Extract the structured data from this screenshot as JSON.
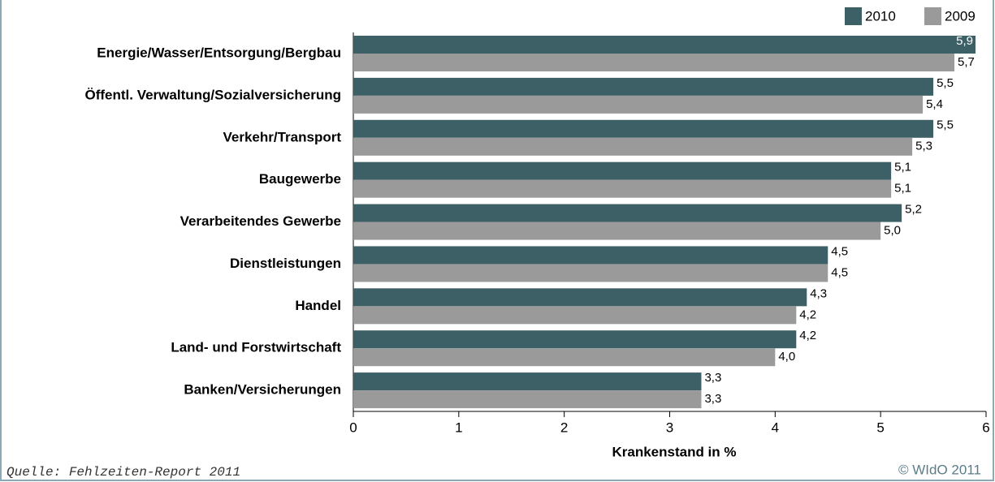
{
  "chart_data": {
    "type": "hbar",
    "categories": [
      "Energie/Wasser/Entsorgung/Bergbau",
      "Öffentl. Verwaltung/Sozialversicherung",
      "Verkehr/Transport",
      "Baugewerbe",
      "Verarbeitendes Gewerbe",
      "Dienstleistungen",
      "Handel",
      "Land- und Forstwirtschaft",
      "Banken/Versicherungen"
    ],
    "series": [
      {
        "name": "2010",
        "color": "#3d5f66",
        "values": [
          5.9,
          5.5,
          5.5,
          5.1,
          5.2,
          4.5,
          4.3,
          4.2,
          3.3
        ],
        "value_labels": [
          "5,9",
          "5,5",
          "5,5",
          "5,1",
          "5,2",
          "4,5",
          "4,3",
          "4,2",
          "3,3"
        ]
      },
      {
        "name": "2009",
        "color": "#9a9a9a",
        "values": [
          5.7,
          5.4,
          5.3,
          5.1,
          5.0,
          4.5,
          4.2,
          4.0,
          3.3
        ],
        "value_labels": [
          "5,7",
          "5,4",
          "5,3",
          "5,1",
          "5,0",
          "4,5",
          "4,2",
          "4,0",
          "3,3"
        ]
      }
    ],
    "xlabel": "Krankenstand in %",
    "xlim": [
      0,
      6
    ],
    "xticks": [
      0,
      1,
      2,
      3,
      4,
      5,
      6
    ],
    "legend": "top-right",
    "source": "Quelle: Fehlzeiten-Report 2011",
    "copyright": "© WIdO 2011"
  }
}
